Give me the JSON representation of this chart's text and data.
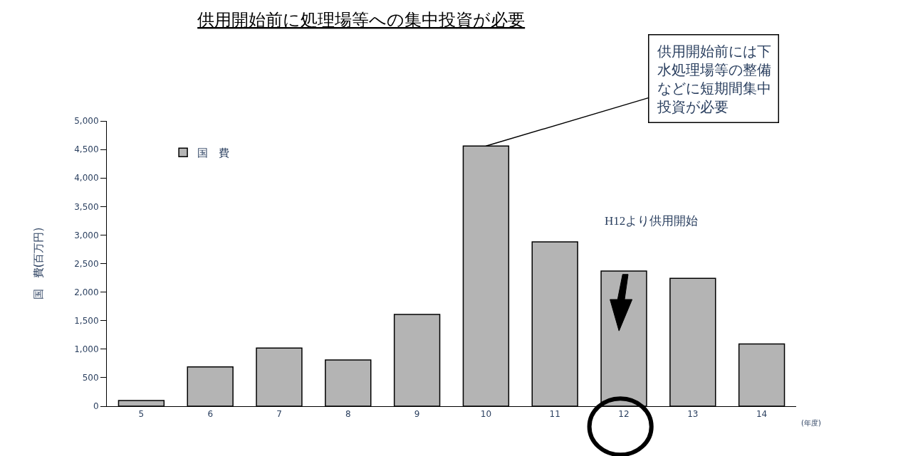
{
  "chart_data": {
    "type": "bar",
    "title": "供用開始前に処理場等への集中投資が必要",
    "xlabel": "(年度)",
    "ylabel": "国　費(百万円)",
    "categories": [
      "5",
      "6",
      "7",
      "8",
      "9",
      "10",
      "11",
      "12",
      "13",
      "14"
    ],
    "series": [
      {
        "name": "国　費",
        "color": "#b4b4b4",
        "values": [
          100,
          690,
          1020,
          810,
          1610,
          4560,
          2880,
          2370,
          2240,
          1090
        ]
      }
    ],
    "ylim": [
      0,
      5000
    ],
    "yticks": [
      {
        "value": 0,
        "label": "0"
      },
      {
        "value": 500,
        "label": "500"
      },
      {
        "value": 1000,
        "label": "1,000"
      },
      {
        "value": 1500,
        "label": "1,500"
      },
      {
        "value": 2000,
        "label": "2,000"
      },
      {
        "value": 2500,
        "label": "2,500"
      },
      {
        "value": 3000,
        "label": "3,000"
      },
      {
        "value": 3500,
        "label": "3,500"
      },
      {
        "value": 4000,
        "label": "4,000"
      },
      {
        "value": 4500,
        "label": "4,500"
      },
      {
        "value": 5000,
        "label": "5,000"
      }
    ],
    "annotations": [
      {
        "text": "供用開始前には下水処理場等の整備などに短期間集中投資が必要",
        "x": "10",
        "y": 4560
      },
      "H12より供用開始"
    ],
    "grid": false,
    "legend": "top left"
  }
}
